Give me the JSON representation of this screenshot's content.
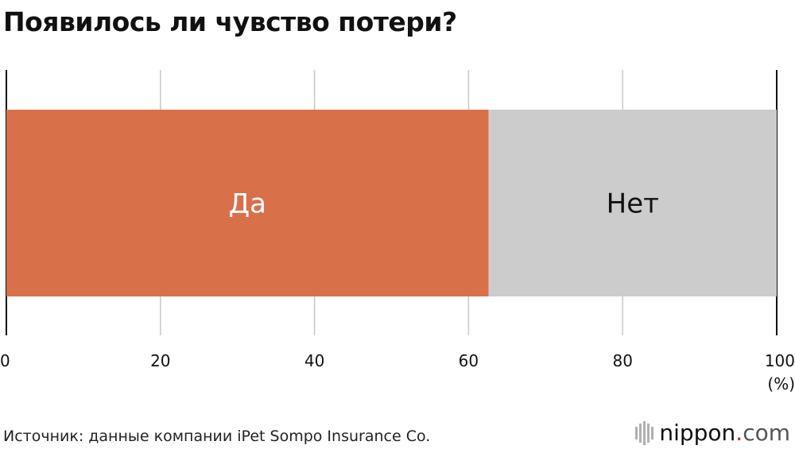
{
  "title": "Появилось ли чувство потери?",
  "chart_data": {
    "type": "bar",
    "orientation": "horizontal-stacked",
    "categories": [
      ""
    ],
    "series": [
      {
        "name": "Да",
        "values": [
          62.6
        ]
      },
      {
        "name": "Нет",
        "values": [
          37.4
        ]
      }
    ],
    "xlim": [
      0,
      100
    ],
    "xticks": [
      "0",
      "20",
      "40",
      "60",
      "80",
      "100"
    ],
    "xunit": "(%)",
    "grid": true,
    "colors": {
      "Да": "#d8704a",
      "Нет": "#cccccc"
    },
    "label_colors": {
      "Да": "#ffffff",
      "Нет": "#111111"
    }
  },
  "footer": {
    "source": "Источник: данные компании iPet Sompo Insurance Co.",
    "logo": {
      "name": "nippon",
      "dot": ".",
      "tld": "com"
    }
  }
}
